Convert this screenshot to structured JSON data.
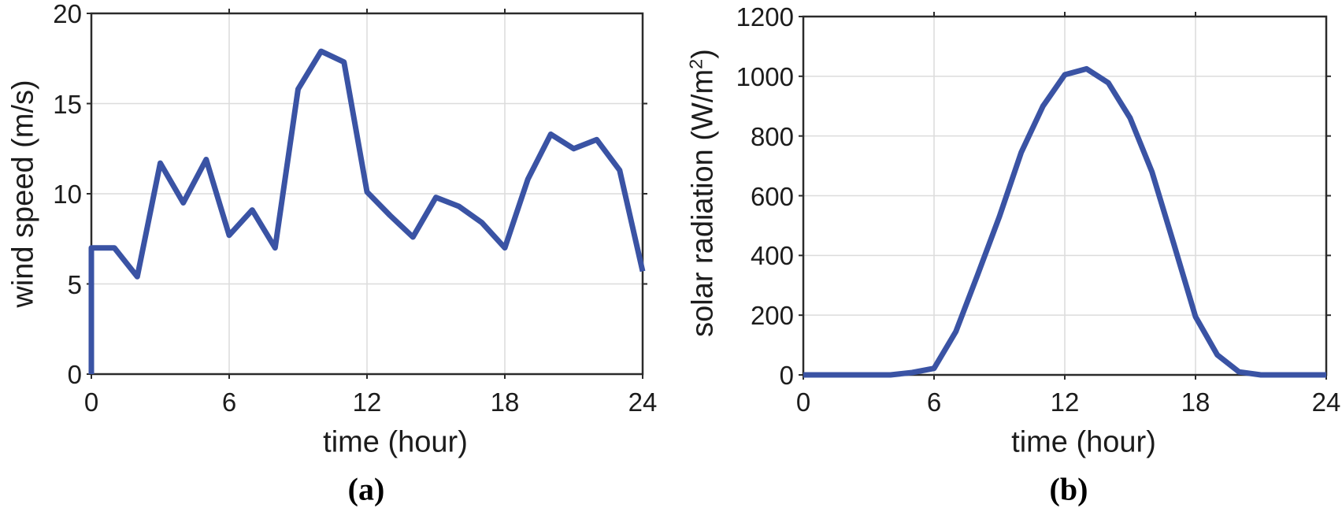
{
  "colors": {
    "line": "#3A53A4",
    "axis": "#2B2B2B",
    "grid": "#DCDCDC",
    "text": "#1C1C1C",
    "background": "#FFFFFF"
  },
  "chart_data": [
    {
      "id": "wind-speed",
      "type": "line",
      "caption": "(a)",
      "xlabel": "time (hour)",
      "ylabel": "wind speed (m/s)",
      "ylabel_parts": {
        "pre": "wind speed (m/s)",
        "sup": "",
        "post": ""
      },
      "x": [
        0,
        0,
        1,
        2,
        3,
        4,
        5,
        6,
        7,
        8,
        9,
        10,
        11,
        12,
        13,
        14,
        15,
        16,
        17,
        18,
        19,
        20,
        21,
        22,
        23,
        24
      ],
      "y": [
        0,
        7,
        7,
        5.4,
        11.7,
        9.5,
        11.9,
        7.7,
        9.1,
        7,
        15.8,
        17.9,
        17.3,
        10.1,
        8.8,
        7.6,
        9.8,
        9.3,
        8.4,
        7,
        10.8,
        13.3,
        12.5,
        13,
        11.3,
        5.7
      ],
      "xlim": [
        0,
        24
      ],
      "ylim": [
        0,
        20
      ],
      "xticks": [
        0,
        6,
        12,
        18,
        24
      ],
      "yticks": [
        0,
        5,
        10,
        15,
        20
      ],
      "grid": true,
      "legend": null,
      "line_color": "#3A53A4"
    },
    {
      "id": "solar-radiation",
      "type": "line",
      "caption": "(b)",
      "xlabel": "time (hour)",
      "ylabel": "solar radiation (W/m2)",
      "ylabel_parts": {
        "pre": "solar radiation (W/m",
        "sup": "2",
        "post": ")"
      },
      "x": [
        0,
        1,
        2,
        3,
        4,
        5,
        6,
        7,
        8,
        9,
        10,
        11,
        12,
        13,
        14,
        15,
        16,
        17,
        18,
        19,
        20,
        21,
        22,
        23,
        24
      ],
      "y": [
        0,
        0,
        0,
        0,
        0,
        8,
        22,
        145,
        335,
        530,
        745,
        900,
        1005,
        1025,
        978,
        860,
        680,
        440,
        195,
        67,
        10,
        0,
        0,
        0,
        0
      ],
      "xlim": [
        0,
        24
      ],
      "ylim": [
        0,
        1200
      ],
      "xticks": [
        0,
        6,
        12,
        18,
        24
      ],
      "yticks": [
        0,
        200,
        400,
        600,
        800,
        1000,
        1200
      ],
      "grid": true,
      "legend": null,
      "line_color": "#3A53A4"
    }
  ]
}
